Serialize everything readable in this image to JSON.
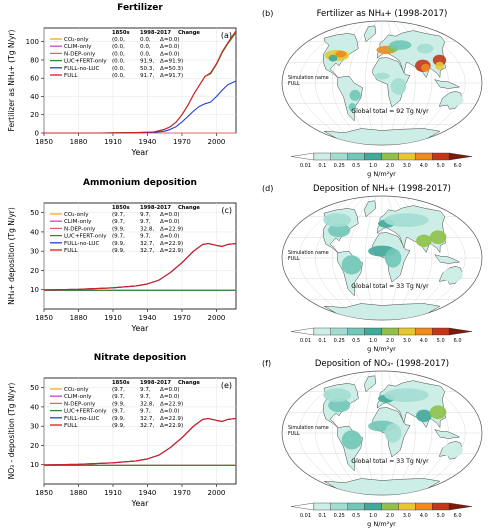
{
  "chart_data": [
    {
      "type": "line",
      "panel_letter": "(a)",
      "title": "Fertilizer",
      "ylabel": "Fertilizer as NH₄+ (Tg N/yr)",
      "xlabel": "Year",
      "xlim": [
        1850,
        2017
      ],
      "xticks": [
        "1850",
        "1880",
        "1910",
        "1940",
        "1970",
        "2000"
      ],
      "ylim": [
        0,
        115
      ],
      "ytick_values": [
        0,
        20,
        40,
        60,
        80,
        100
      ],
      "ytick_labels": [
        "0",
        "20",
        "40",
        "60",
        "80",
        "100"
      ],
      "table_headers": [
        "1850s",
        "1998-2017",
        "Change"
      ],
      "legend": [
        {
          "name": "CO₂-only",
          "color": "#f5a623",
          "v1850": "(0.0,",
          "v1998": "0.0,",
          "change": "Δ=0.0)"
        },
        {
          "name": "CLIM-only",
          "color": "#cc44cc",
          "v1850": "(0.0,",
          "v1998": "0.0,",
          "change": "Δ=0.0)"
        },
        {
          "name": "N-DEP-only",
          "color": "#e06666",
          "v1850": "(0.0,",
          "v1998": "0.0,",
          "change": "Δ=0.0)"
        },
        {
          "name": "LUC+FERT-only",
          "color": "#2e8b2e",
          "v1850": "(0.0,",
          "v1998": "91.9,",
          "change": "Δ=91.9)"
        },
        {
          "name": "FULL-no-LUC",
          "color": "#1f3fd6",
          "v1850": "(0.0,",
          "v1998": "50.3,",
          "change": "Δ=50.3)"
        },
        {
          "name": "FULL",
          "color": "#d62020",
          "v1850": "(0.0,",
          "v1998": "91.7,",
          "change": "Δ=91.7)"
        }
      ],
      "series": [
        {
          "name": "CO₂-only",
          "x": [
            1850,
            2017
          ],
          "values": [
            0,
            0
          ]
        },
        {
          "name": "CLIM-only",
          "x": [
            1850,
            2017
          ],
          "values": [
            0,
            0
          ]
        },
        {
          "name": "N-DEP-only",
          "x": [
            1850,
            2017
          ],
          "values": [
            0,
            0
          ]
        },
        {
          "name": "LUC+FERT-only",
          "x": [
            1850,
            1900,
            1930,
            1945,
            1955,
            1960,
            1965,
            1970,
            1975,
            1980,
            1985,
            1990,
            1995,
            2000,
            2005,
            2010,
            2017
          ],
          "values": [
            0,
            0,
            0.5,
            1,
            4,
            7,
            12,
            20,
            30,
            42,
            52,
            62,
            65,
            75,
            88,
            98,
            110
          ]
        },
        {
          "name": "FULL-no-LUC",
          "x": [
            1850,
            1900,
            1930,
            1945,
            1955,
            1960,
            1965,
            1970,
            1975,
            1980,
            1985,
            1990,
            1995,
            2000,
            2005,
            2010,
            2017
          ],
          "values": [
            0,
            0,
            0.3,
            0.5,
            2,
            4,
            7,
            12,
            18,
            24,
            29,
            32,
            34,
            40,
            47,
            53,
            57
          ]
        },
        {
          "name": "FULL",
          "x": [
            1850,
            1900,
            1930,
            1945,
            1955,
            1960,
            1965,
            1970,
            1975,
            1980,
            1985,
            1990,
            1995,
            2000,
            2005,
            2010,
            2017
          ],
          "values": [
            0,
            0,
            0.5,
            1,
            4,
            7,
            12,
            20,
            30,
            42,
            52,
            62,
            66,
            76,
            89,
            99,
            112
          ]
        }
      ]
    },
    {
      "type": "line",
      "panel_letter": "(c)",
      "title": "Ammonium deposition",
      "ylabel": "NH₄+ deposition (Tg N/yr)",
      "xlabel": "Year",
      "xlim": [
        1850,
        2017
      ],
      "xticks": [
        "1850",
        "1880",
        "1910",
        "1940",
        "1970",
        "2000"
      ],
      "ylim": [
        0,
        55
      ],
      "ytick_values": [
        10,
        20,
        30,
        40,
        50
      ],
      "ytick_labels": [
        "10",
        "20",
        "30",
        "40",
        "50"
      ],
      "table_headers": [
        "1850s",
        "1998-2017",
        "Change"
      ],
      "legend": [
        {
          "name": "CO₂-only",
          "color": "#f5a623",
          "v1850": "(9.7,",
          "v1998": "9.7,",
          "change": "Δ=0.0)"
        },
        {
          "name": "CLIM-only",
          "color": "#cc44cc",
          "v1850": "(9.7,",
          "v1998": "9.7,",
          "change": "Δ=0.0)"
        },
        {
          "name": "N-DEP-only",
          "color": "#e06666",
          "v1850": "(9.9,",
          "v1998": "32.8,",
          "change": "Δ=22.9)"
        },
        {
          "name": "LUC+FERT-only",
          "color": "#2e8b2e",
          "v1850": "(9.7,",
          "v1998": "9.7,",
          "change": "Δ=0.0)"
        },
        {
          "name": "FULL-no-LUC",
          "color": "#1f3fd6",
          "v1850": "(9.9,",
          "v1998": "32.7,",
          "change": "Δ=22.9)"
        },
        {
          "name": "FULL",
          "color": "#d62020",
          "v1850": "(9.9,",
          "v1998": "32.7,",
          "change": "Δ=22.9)"
        }
      ],
      "series": [
        {
          "name": "CO₂-only",
          "x": [
            1850,
            2017
          ],
          "values": [
            9.7,
            9.7
          ]
        },
        {
          "name": "CLIM-only",
          "x": [
            1850,
            2017
          ],
          "values": [
            9.7,
            9.7
          ]
        },
        {
          "name": "LUC+FERT-only",
          "x": [
            1850,
            2017
          ],
          "values": [
            9.7,
            9.7
          ]
        },
        {
          "name": "N-DEP-only",
          "x": [
            1850,
            1880,
            1910,
            1930,
            1940,
            1950,
            1960,
            1970,
            1980,
            1988,
            1993,
            2000,
            2005,
            2010,
            2017
          ],
          "values": [
            9.9,
            10.2,
            11,
            12,
            13,
            15,
            19,
            24,
            30,
            33.5,
            34,
            33,
            32.5,
            33.5,
            34
          ]
        },
        {
          "name": "FULL-no-LUC",
          "x": [
            1850,
            1880,
            1910,
            1930,
            1940,
            1950,
            1960,
            1970,
            1980,
            1988,
            1993,
            2000,
            2005,
            2010,
            2017
          ],
          "values": [
            9.9,
            10.2,
            11,
            12,
            13,
            15,
            19,
            24,
            30,
            33.5,
            34,
            33,
            32.5,
            33.5,
            34
          ]
        },
        {
          "name": "FULL",
          "x": [
            1850,
            1880,
            1910,
            1930,
            1940,
            1950,
            1960,
            1970,
            1980,
            1988,
            1993,
            2000,
            2005,
            2010,
            2017
          ],
          "values": [
            9.9,
            10.2,
            11,
            12,
            13,
            15,
            19,
            24,
            30,
            33.5,
            34,
            33,
            32.5,
            33.5,
            34
          ]
        }
      ]
    },
    {
      "type": "line",
      "panel_letter": "(e)",
      "title": "Nitrate deposition",
      "ylabel": "NO₃ - deposition (Tg N/yr)",
      "xlabel": "Year",
      "xlim": [
        1850,
        2017
      ],
      "xticks": [
        "1850",
        "1880",
        "1910",
        "1940",
        "1970",
        "2000"
      ],
      "ylim": [
        0,
        55
      ],
      "ytick_values": [
        10,
        20,
        30,
        40,
        50
      ],
      "ytick_labels": [
        "10",
        "20",
        "30",
        "40",
        "50"
      ],
      "table_headers": [
        "1850s",
        "1998-2017",
        "Change"
      ],
      "legend": [
        {
          "name": "CO₂-only",
          "color": "#f5a623",
          "v1850": "(9.7,",
          "v1998": "9.7,",
          "change": "Δ=0.0)"
        },
        {
          "name": "CLIM-only",
          "color": "#cc44cc",
          "v1850": "(9.7,",
          "v1998": "9.7,",
          "change": "Δ=0.0)"
        },
        {
          "name": "N-DEP-only",
          "color": "#e06666",
          "v1850": "(9.9,",
          "v1998": "32.8,",
          "change": "Δ=22.9)"
        },
        {
          "name": "LUC+FERT-only",
          "color": "#2e8b2e",
          "v1850": "(9.7,",
          "v1998": "9.7,",
          "change": "Δ=0.0)"
        },
        {
          "name": "FULL-no-LUC",
          "color": "#1f3fd6",
          "v1850": "(9.9,",
          "v1998": "32.7,",
          "change": "Δ=22.9)"
        },
        {
          "name": "FULL",
          "color": "#d62020",
          "v1850": "(9.9,",
          "v1998": "32.7,",
          "change": "Δ=22.9)"
        }
      ],
      "series": [
        {
          "name": "CO₂-only",
          "x": [
            1850,
            2017
          ],
          "values": [
            9.7,
            9.7
          ]
        },
        {
          "name": "CLIM-only",
          "x": [
            1850,
            2017
          ],
          "values": [
            9.7,
            9.7
          ]
        },
        {
          "name": "LUC+FERT-only",
          "x": [
            1850,
            2017
          ],
          "values": [
            9.7,
            9.7
          ]
        },
        {
          "name": "N-DEP-only",
          "x": [
            1850,
            1880,
            1910,
            1930,
            1940,
            1950,
            1960,
            1970,
            1980,
            1988,
            1993,
            2000,
            2005,
            2010,
            2017
          ],
          "values": [
            9.9,
            10.2,
            11,
            12,
            13,
            15,
            19,
            24,
            30,
            33.5,
            34,
            33,
            32.5,
            33.5,
            34
          ]
        },
        {
          "name": "FULL-no-LUC",
          "x": [
            1850,
            1880,
            1910,
            1930,
            1940,
            1950,
            1960,
            1970,
            1980,
            1988,
            1993,
            2000,
            2005,
            2010,
            2017
          ],
          "values": [
            9.9,
            10.2,
            11,
            12,
            13,
            15,
            19,
            24,
            30,
            33.5,
            34,
            33,
            32.5,
            33.5,
            34
          ]
        },
        {
          "name": "FULL",
          "x": [
            1850,
            1880,
            1910,
            1930,
            1940,
            1950,
            1960,
            1970,
            1980,
            1988,
            1993,
            2000,
            2005,
            2010,
            2017
          ],
          "values": [
            9.9,
            10.2,
            11,
            12,
            13,
            15,
            19,
            24,
            30,
            33.5,
            34,
            33,
            32.5,
            33.5,
            34
          ]
        }
      ]
    },
    {
      "type": "heatmap",
      "panel_letter": "(b)",
      "title": "Fertilizer as NH₄+ (1998-2017)",
      "sim_label": "Simulation name",
      "sim_name": "FULL",
      "total": "Global total = 92 Tg N/yr",
      "unit": "g N/m²yr",
      "colorbar_ticks": [
        "0.01",
        "0.1",
        "0.25",
        "0.5",
        "1.0",
        "2.0",
        "3.0",
        "4.0",
        "5.0",
        "6.0"
      ]
    },
    {
      "type": "heatmap",
      "panel_letter": "(d)",
      "title": "Deposition of NH₄+ (1998-2017)",
      "sim_label": "Simulation name",
      "sim_name": "FULL",
      "total": "Global total = 33 Tg N/yr",
      "unit": "g N/m²yr",
      "colorbar_ticks": [
        "0.01",
        "0.1",
        "0.25",
        "0.5",
        "1.0",
        "2.0",
        "3.0",
        "4.0",
        "5.0",
        "6.0"
      ]
    },
    {
      "type": "heatmap",
      "panel_letter": "(f)",
      "title": "Deposition of NO₃- (1998-2017)",
      "sim_label": "Simulation name",
      "sim_name": "FULL",
      "total": "Global total = 33 Tg N/yr",
      "unit": "g N/m²yr",
      "colorbar_ticks": [
        "0.01",
        "0.1",
        "0.25",
        "0.5",
        "1.0",
        "2.0",
        "3.0",
        "4.0",
        "5.0",
        "6.0"
      ]
    }
  ],
  "colors": {
    "colorbar": [
      "#ffffff",
      "#cdeee6",
      "#a3ddd2",
      "#72c7b8",
      "#41a99a",
      "#90c04a",
      "#e8c630",
      "#ee8a1e",
      "#c4361a",
      "#7a1a0c"
    ],
    "land": "#ffffff",
    "ocean": "#ffffff",
    "grid": "#c8c8c8"
  }
}
